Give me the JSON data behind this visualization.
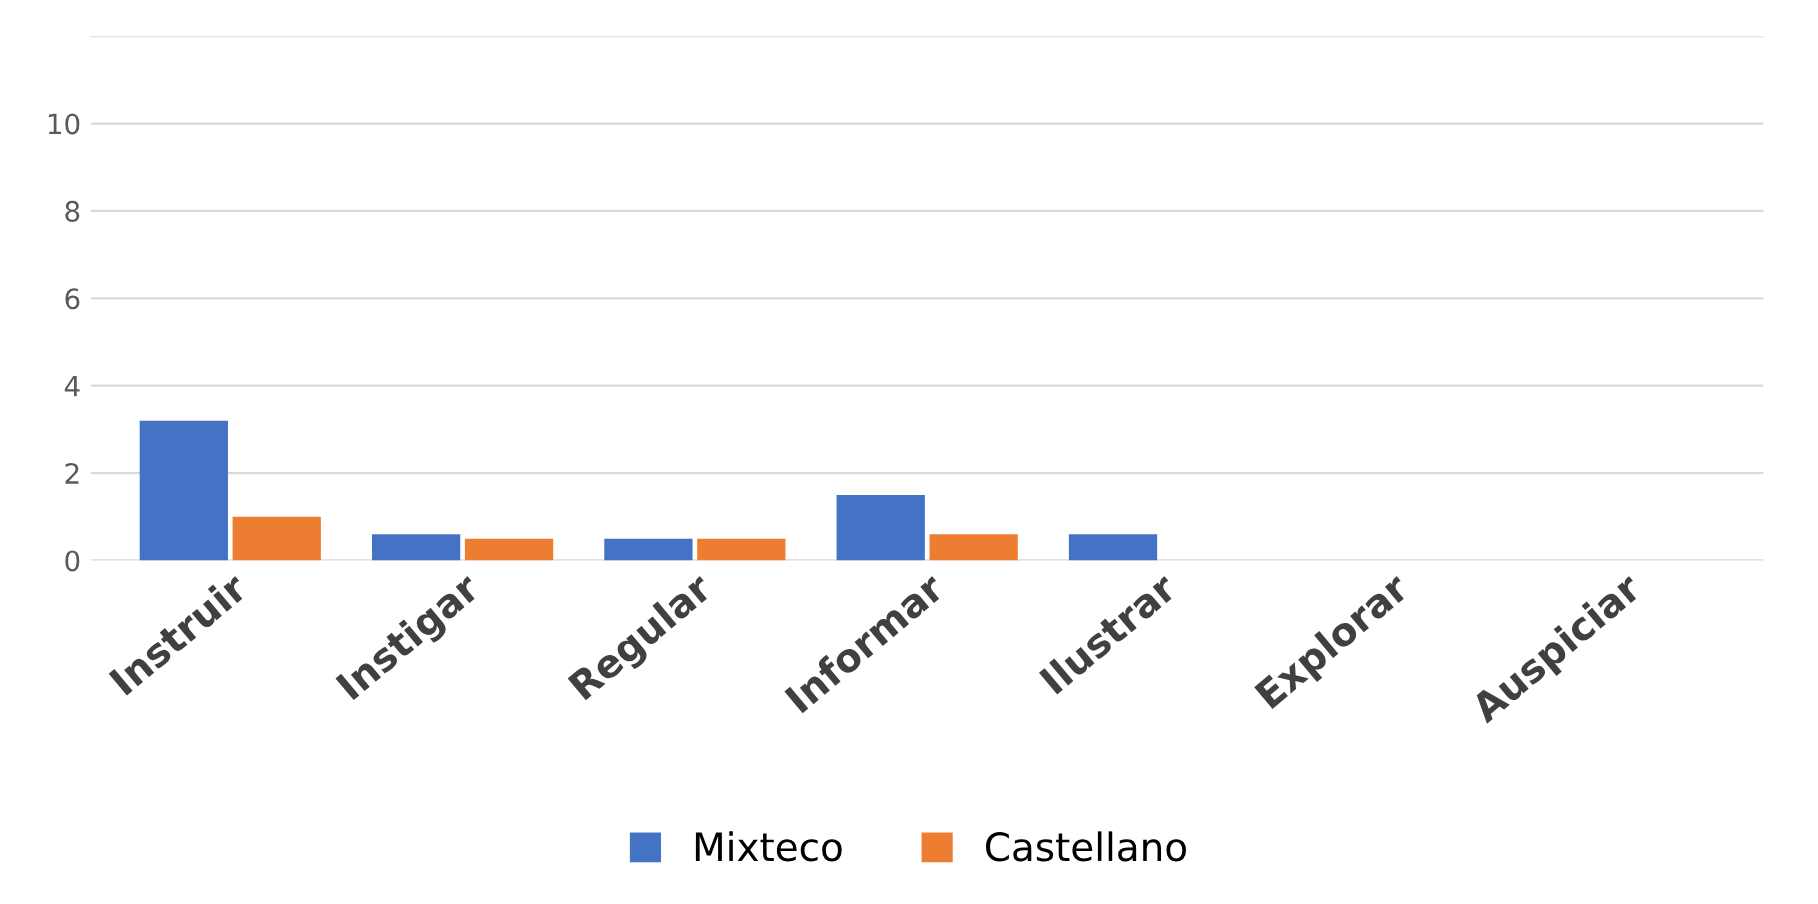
{
  "chart_data": {
    "type": "bar",
    "categories": [
      "Instruir",
      "Instigar",
      "Regular",
      "Informar",
      "Ilustrar",
      "Explorar",
      "Auspiciar"
    ],
    "series": [
      {
        "name": "Mixteco",
        "color": "#4472c4",
        "values": [
          3.2,
          0.6,
          0.5,
          1.5,
          0.6,
          0,
          0
        ]
      },
      {
        "name": "Castellano",
        "color": "#ed7d31",
        "values": [
          1,
          0.5,
          0.5,
          0.6,
          0,
          0,
          0
        ]
      }
    ],
    "ylim": [
      0,
      12
    ],
    "yticks": [
      0,
      2,
      4,
      6,
      8,
      10,
      {
        "value": 12,
        "label": null
      }
    ],
    "grid": "y",
    "legend": "bottom"
  }
}
